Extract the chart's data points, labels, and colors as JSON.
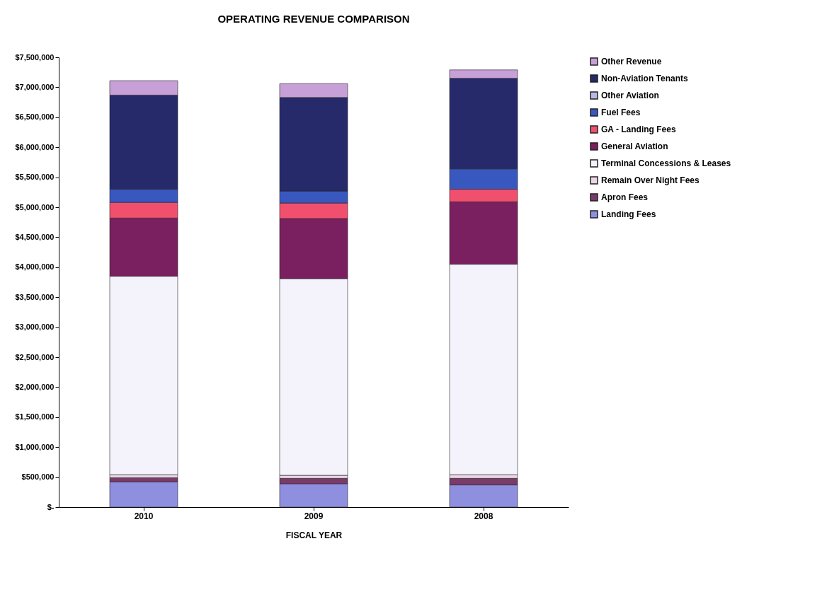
{
  "chart_data": {
    "type": "bar",
    "title": "OPERATING REVENUE COMPARISON",
    "xlabel": "FISCAL YEAR",
    "categories": [
      "2010",
      "2009",
      "2008"
    ],
    "stacked": true,
    "legend": "right",
    "grid": false,
    "ylim": [
      0,
      7500000
    ],
    "yticks": [
      {
        "value": 0,
        "label": "$-"
      },
      {
        "value": 500000,
        "label": "$500,000"
      },
      {
        "value": 1000000,
        "label": "$1,000,000"
      },
      {
        "value": 1500000,
        "label": "$1,500,000"
      },
      {
        "value": 2000000,
        "label": "$2,000,000"
      },
      {
        "value": 2500000,
        "label": "$2,500,000"
      },
      {
        "value": 3000000,
        "label": "$3,000,000"
      },
      {
        "value": 3500000,
        "label": "$3,500,000"
      },
      {
        "value": 4000000,
        "label": "$4,000,000"
      },
      {
        "value": 4500000,
        "label": "$4,500,000"
      },
      {
        "value": 5000000,
        "label": "$5,000,000"
      },
      {
        "value": 5500000,
        "label": "$5,500,000"
      },
      {
        "value": 6000000,
        "label": "$6,000,000"
      },
      {
        "value": 6500000,
        "label": "$6,500,000"
      },
      {
        "value": 7000000,
        "label": "$7,000,000"
      },
      {
        "value": 7500000,
        "label": "$7,500,000"
      }
    ],
    "series": [
      {
        "name": "Landing Fees",
        "color": "#8f8fe0",
        "values": [
          420000,
          390000,
          370000
        ]
      },
      {
        "name": "Apron Fees",
        "color": "#7a3a6a",
        "values": [
          70000,
          90000,
          110000
        ]
      },
      {
        "name": "Remain Over Night Fees",
        "color": "#ecd6e6",
        "values": [
          50000,
          50000,
          60000
        ]
      },
      {
        "name": "Terminal Concessions & Leases",
        "color": "#f4f2fb",
        "values": [
          3310000,
          3280000,
          3510000
        ]
      },
      {
        "name": "General Aviation",
        "color": "#7a1f5f",
        "values": [
          970000,
          1000000,
          1040000
        ]
      },
      {
        "name": "GA - Landing Fees",
        "color": "#f0506e",
        "values": [
          260000,
          260000,
          210000
        ]
      },
      {
        "name": "Fuel Fees",
        "color": "#3858c0",
        "values": [
          220000,
          200000,
          340000
        ]
      },
      {
        "name": "Other Aviation",
        "color": "#b8b8e8",
        "values": [
          null,
          null,
          null
        ]
      },
      {
        "name": "Non-Aviation Tenants",
        "color": "#262a6a",
        "values": [
          1570000,
          1560000,
          1510000
        ]
      },
      {
        "name": "Other Revenue",
        "color": "#c8a0d8",
        "values": [
          240000,
          230000,
          140000
        ]
      }
    ]
  }
}
